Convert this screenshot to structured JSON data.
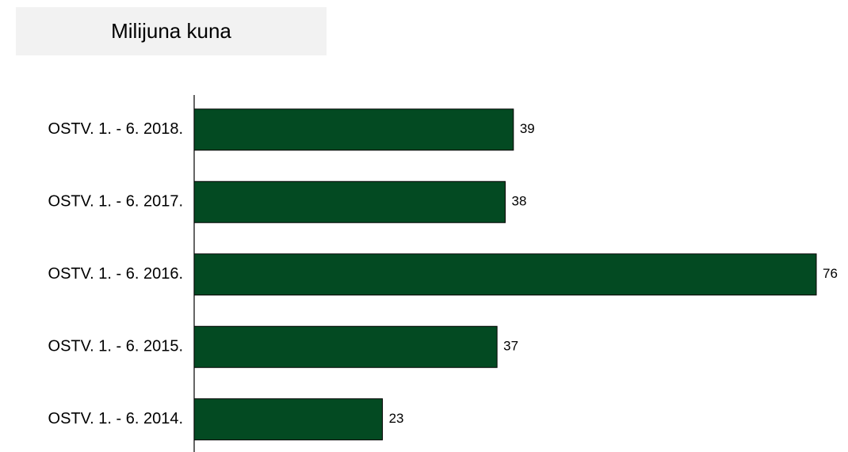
{
  "chart_data": {
    "type": "bar",
    "orientation": "horizontal",
    "title": "Milijuna kuna",
    "categories": [
      "OSTV. 1. - 6. 2018.",
      "OSTV. 1. - 6. 2017.",
      "OSTV. 1. - 6. 2016.",
      "OSTV. 1. - 6. 2015.",
      "OSTV. 1. - 6. 2014."
    ],
    "values": [
      39,
      38,
      76,
      37,
      23
    ],
    "color": "#034a22"
  }
}
